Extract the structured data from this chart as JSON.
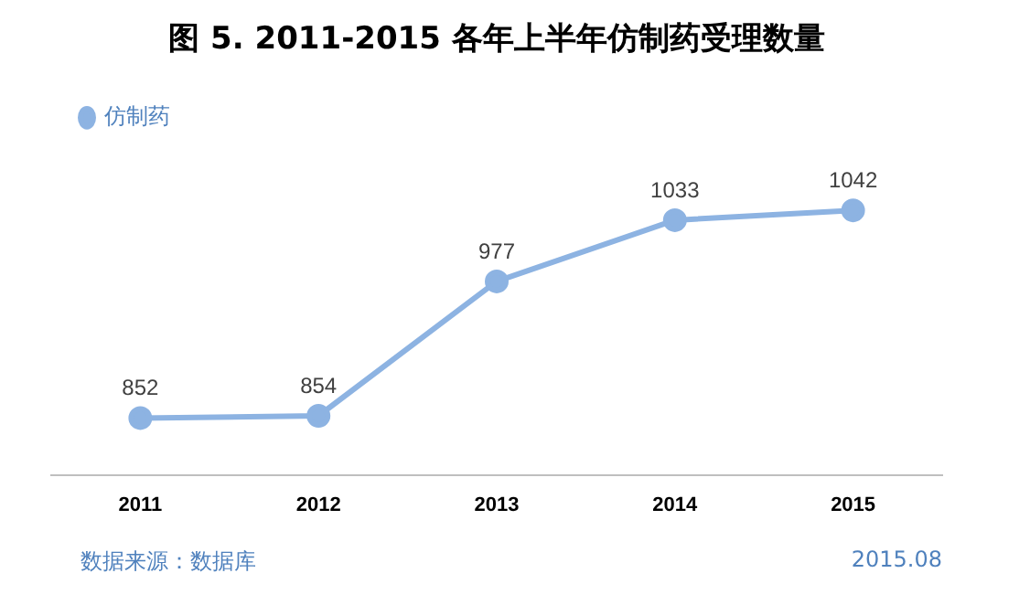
{
  "chart_data": {
    "type": "line",
    "title": "图 5. 2011-2015 各年上半年仿制药受理数量",
    "categories": [
      "2011",
      "2012",
      "2013",
      "2014",
      "2015"
    ],
    "series": [
      {
        "name": "仿制药",
        "color": "#8db3e2",
        "values": [
          852,
          854,
          977,
          1033,
          1042
        ]
      }
    ],
    "data_labels": true,
    "legend": "top left",
    "grid": false,
    "marker": "circle",
    "line_style": "solid",
    "tick_labels": "x",
    "annotations": [
      "数据来源：数据库",
      "2015.08"
    ]
  }
}
